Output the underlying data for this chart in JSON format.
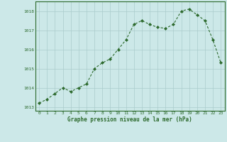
{
  "x": [
    0,
    1,
    2,
    3,
    4,
    5,
    6,
    7,
    8,
    9,
    10,
    11,
    12,
    13,
    14,
    15,
    16,
    17,
    18,
    19,
    20,
    21,
    22,
    23
  ],
  "y": [
    1013.2,
    1013.4,
    1013.7,
    1014.0,
    1013.8,
    1014.0,
    1014.2,
    1015.0,
    1015.3,
    1015.5,
    1016.0,
    1016.5,
    1017.3,
    1017.5,
    1017.3,
    1017.15,
    1017.1,
    1017.3,
    1018.0,
    1018.1,
    1017.8,
    1017.5,
    1016.5,
    1015.3
  ],
  "line_color": "#2d6a2d",
  "marker_color": "#2d6a2d",
  "bg_color": "#cce8e8",
  "grid_color": "#aacccc",
  "xlabel": "Graphe pression niveau de la mer (hPa)",
  "ylim": [
    1012.8,
    1018.5
  ],
  "xlim": [
    -0.5,
    23.5
  ],
  "yticks": [
    1013,
    1014,
    1015,
    1016,
    1017,
    1018
  ],
  "xticks": [
    0,
    1,
    2,
    3,
    4,
    5,
    6,
    7,
    8,
    9,
    10,
    11,
    12,
    13,
    14,
    15,
    16,
    17,
    18,
    19,
    20,
    21,
    22,
    23
  ]
}
